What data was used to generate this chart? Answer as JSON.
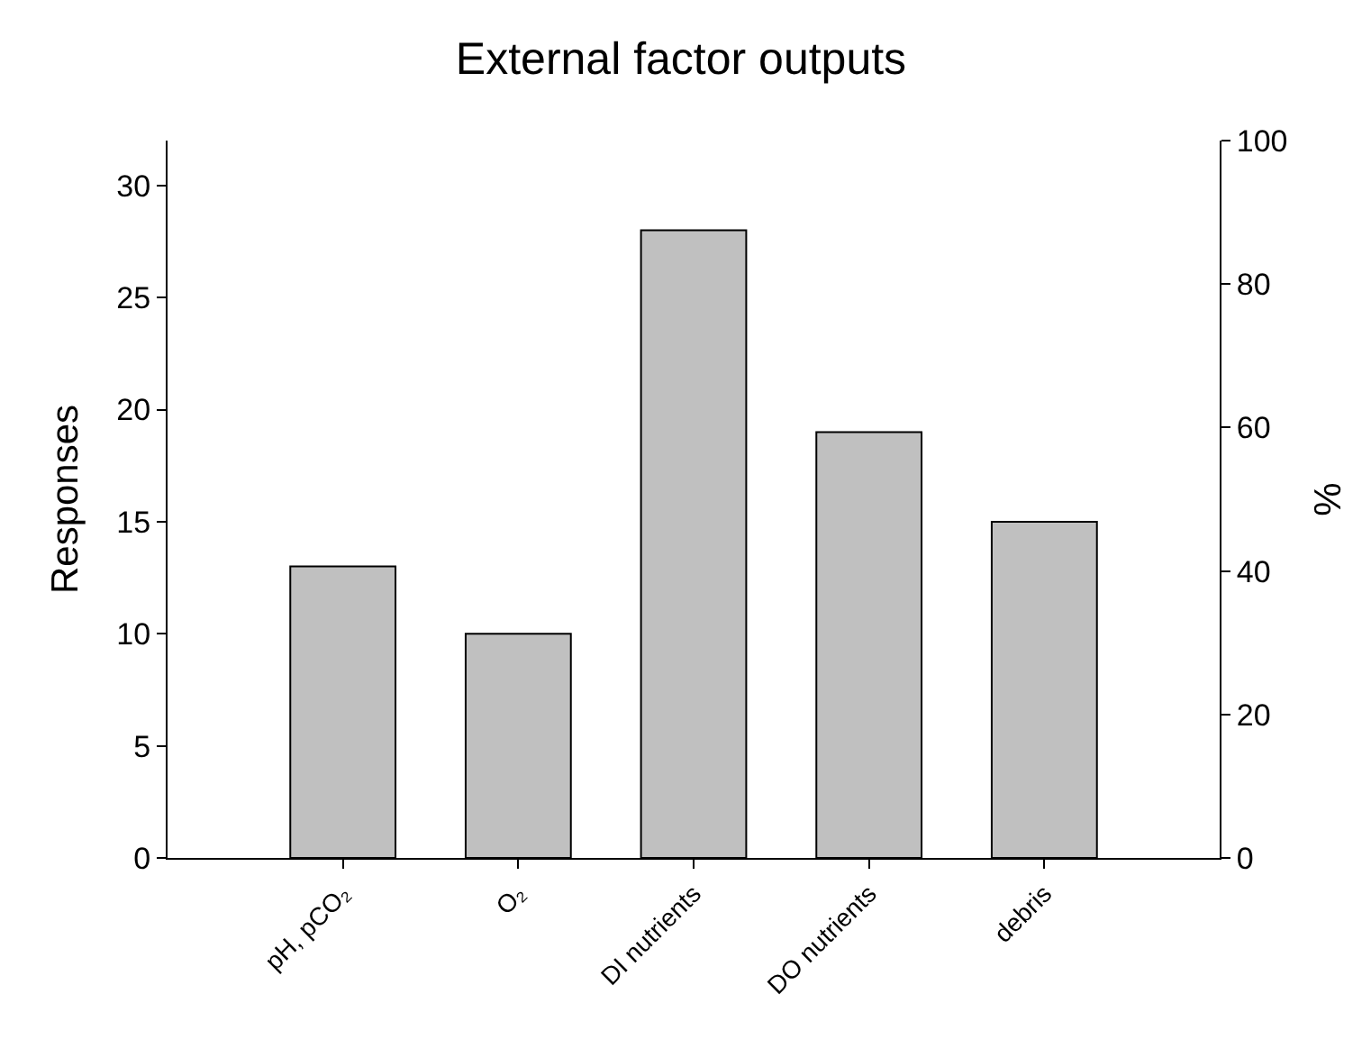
{
  "chart_data": {
    "type": "bar",
    "title": "External factor outputs",
    "ylabel": "Responses",
    "y2label": "%",
    "categories": [
      "pH, pCO₂",
      "O₂",
      "DI nutrients",
      "DO nutrients",
      "debris"
    ],
    "series": [
      {
        "color": "#c0c0c0",
        "values": [
          13,
          10,
          28,
          19,
          15
        ]
      }
    ],
    "ylim": [
      0,
      32
    ],
    "yticks": [
      0,
      5,
      10,
      15,
      20,
      25,
      30
    ],
    "y2lim": [
      0,
      100
    ],
    "y2ticks": [
      0,
      20,
      40,
      60,
      80,
      100
    ]
  }
}
